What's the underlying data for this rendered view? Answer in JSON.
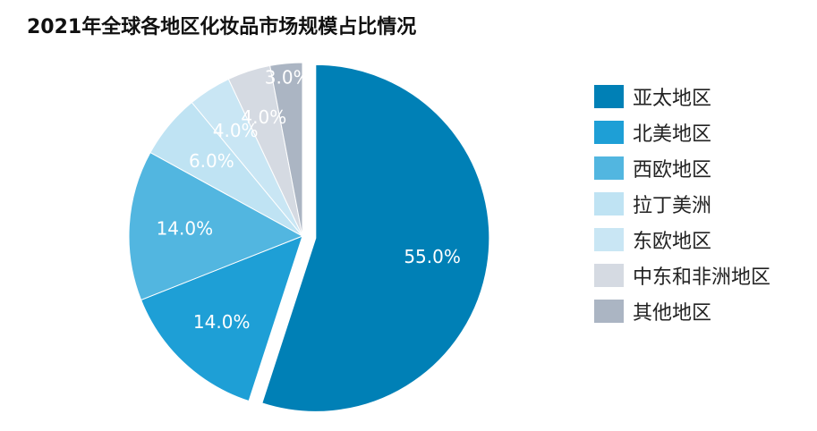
{
  "chart_data": {
    "type": "pie",
    "title": "2021年全球各地区化妆品市场规模占比情况",
    "legend_position": "right",
    "slices": [
      {
        "name": "亚太地区",
        "value": 55.0,
        "label": "55.0%",
        "color": "#0080b6",
        "exploded": true
      },
      {
        "name": "北美地区",
        "value": 14.0,
        "label": "14.0%",
        "color": "#1e9fd6",
        "exploded": false
      },
      {
        "name": "西欧地区",
        "value": 14.0,
        "label": "14.0%",
        "color": "#52b6e0",
        "exploded": false
      },
      {
        "name": "拉丁美洲",
        "value": 6.0,
        "label": "6.0%",
        "color": "#bfe3f3",
        "exploded": false
      },
      {
        "name": "东欧地区",
        "value": 4.0,
        "label": "4.0%",
        "color": "#c9e6f4",
        "exploded": false
      },
      {
        "name": "中东和非洲地区",
        "value": 4.0,
        "label": "4.0%",
        "color": "#d5dae2",
        "exploded": false
      },
      {
        "name": "其他地区",
        "value": 3.0,
        "label": "3.0%",
        "color": "#abb5c3",
        "exploded": false
      }
    ]
  }
}
